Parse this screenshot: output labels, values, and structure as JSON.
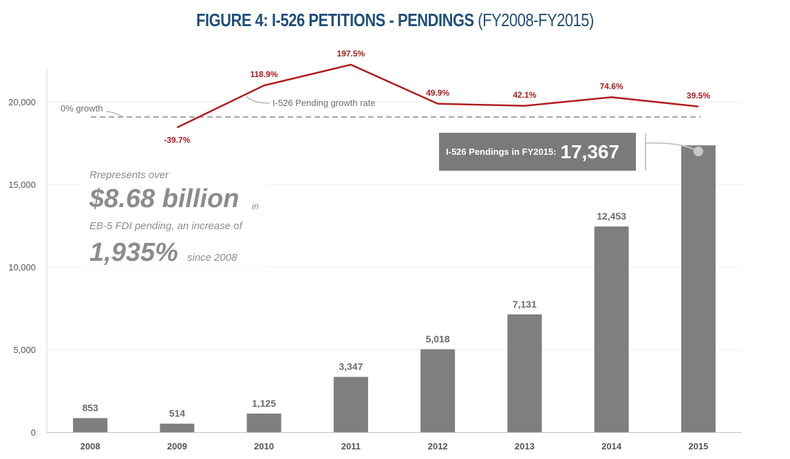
{
  "chart_data": {
    "type": "bar",
    "title": "FIGURE 4: I-526 PETITIONS - PENDINGS",
    "subtitle": "(FY2008-FY2015)",
    "categories": [
      "2008",
      "2009",
      "2010",
      "2011",
      "2012",
      "2013",
      "2014",
      "2015"
    ],
    "values": [
      853,
      514,
      1125,
      3347,
      5018,
      7131,
      12453,
      17367
    ],
    "value_labels": [
      "853",
      "514",
      "1,125",
      "3,347",
      "5,018",
      "7,131",
      "12,453",
      ""
    ],
    "ylim": [
      0,
      22000
    ],
    "yticks": [
      0,
      5000,
      10000,
      15000,
      20000
    ],
    "ytick_labels": [
      "0",
      "5,000",
      "10,000",
      "15,000",
      "20,000"
    ],
    "bar_color": "#7f7f7f",
    "grid": true,
    "growth_series": {
      "name": "I-526 Pending growth rate",
      "categories": [
        "2009",
        "2010",
        "2011",
        "2012",
        "2013",
        "2014",
        "2015"
      ],
      "values": [
        -39.7,
        118.9,
        197.5,
        49.9,
        42.1,
        74.6,
        39.5
      ],
      "labels": [
        "-39.7%",
        "118.9%",
        "197.5%",
        "49.9%",
        "42.1%",
        "74.6%",
        "39.5%"
      ],
      "color": "#b01c1c"
    },
    "zero_growth_label": "0% growth",
    "callout": {
      "label": "I-526 Pendings in FY2015:",
      "value": "17,367"
    },
    "textbox": {
      "line1": "Rrepresents over",
      "big1": "$8.68 billion",
      "small1": "in",
      "line2": "EB-5 FDI pending, an increase of",
      "big2": "1,935%",
      "small2": "since 2008"
    }
  }
}
